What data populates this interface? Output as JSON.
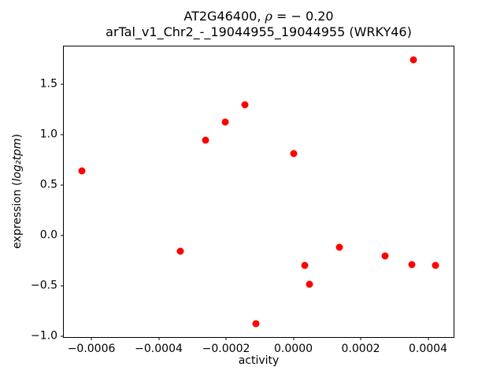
{
  "figure": {
    "background": "#ffffff",
    "title": {
      "part1": "AT2G46400, ",
      "rho": "ρ",
      "part2": " = − 0.20",
      "line2": "arTal_v1_Chr2_-_19044955_19044955 (WRKY46)"
    },
    "labels": {
      "xlabel": "activity",
      "ylabel_prefix": "expression (",
      "ylabel_math": "log₂tpm",
      "ylabel_suffix": ")"
    }
  },
  "chart_data": {
    "type": "scatter",
    "title": "AT2G46400, ρ = − 0.20",
    "subtitle": "arTal_v1_Chr2_-_19044955_19044955 (WRKY46)",
    "xlabel": "activity",
    "ylabel": "expression (log2 tpm)",
    "marker_color": "#ff0000",
    "marker_size_px": 9,
    "grid": false,
    "legend": false,
    "xlim": [
      -0.000682,
      0.000476
    ],
    "ylim": [
      -1.011,
      1.871
    ],
    "xticks": {
      "values": [
        -0.0006,
        -0.0004,
        -0.0002,
        0.0,
        0.0002,
        0.0004
      ],
      "labels": [
        "−0.0006",
        "−0.0004",
        "−0.0002",
        "0.0000",
        "0.0002",
        "0.0004"
      ]
    },
    "yticks": {
      "values": [
        -1.0,
        -0.5,
        0.0,
        0.5,
        1.0,
        1.5
      ],
      "labels": [
        "−1.0",
        "−0.5",
        "0.0",
        "0.5",
        "1.0",
        "1.5"
      ]
    },
    "points": [
      [
        -0.000629,
        0.64
      ],
      [
        -0.000335,
        -0.16
      ],
      [
        -0.000262,
        0.94
      ],
      [
        -0.000203,
        1.12
      ],
      [
        -0.000144,
        1.29
      ],
      [
        -0.000111,
        -0.88
      ],
      [
        2e-06,
        0.81
      ],
      [
        3.5e-05,
        -0.3
      ],
      [
        4.8e-05,
        -0.49
      ],
      [
        0.000136,
        -0.12
      ],
      [
        0.000272,
        -0.21
      ],
      [
        0.000352,
        -0.29
      ],
      [
        0.000356,
        1.74
      ],
      [
        0.000423,
        -0.3
      ]
    ]
  }
}
